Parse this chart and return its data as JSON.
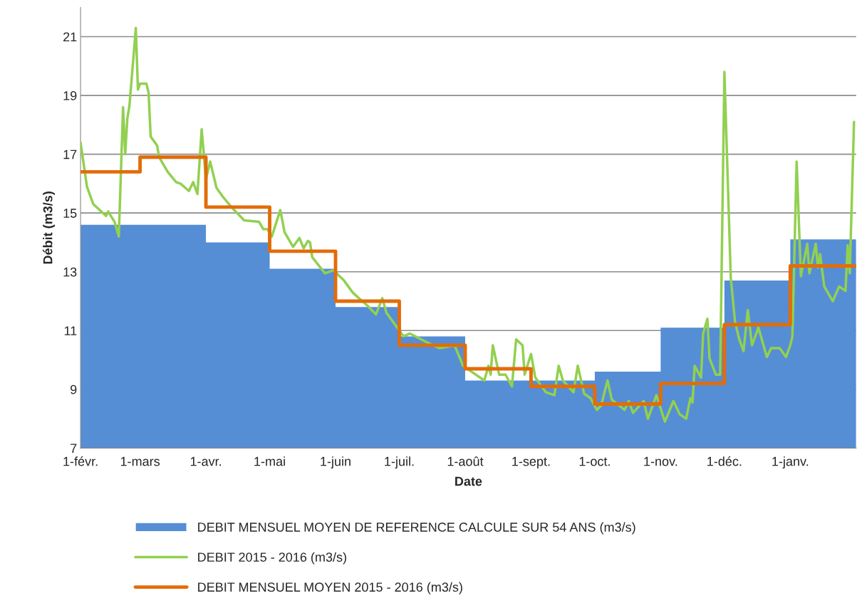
{
  "chart_data": {
    "type": "line",
    "xlabel": "Date",
    "ylabel": "Débit (m3/s)",
    "xlim": [
      "2015-02-01",
      "2016-02-01"
    ],
    "ylim": [
      7,
      22
    ],
    "xticks": [
      {
        "value": "2015-02-01",
        "label": "1-févr."
      },
      {
        "value": "2015-03-01",
        "label": "1-mars"
      },
      {
        "value": "2015-04-01",
        "label": "1-avr."
      },
      {
        "value": "2015-05-01",
        "label": "1-mai"
      },
      {
        "value": "2015-06-01",
        "label": "1-juin"
      },
      {
        "value": "2015-07-01",
        "label": "1-juil."
      },
      {
        "value": "2015-08-01",
        "label": "1-août"
      },
      {
        "value": "2015-09-01",
        "label": "1-sept."
      },
      {
        "value": "2015-10-01",
        "label": "1-oct."
      },
      {
        "value": "2015-11-01",
        "label": "1-nov."
      },
      {
        "value": "2015-12-01",
        "label": "1-déc."
      },
      {
        "value": "2016-01-01",
        "label": "1-janv."
      }
    ],
    "yticks": [
      7,
      9,
      11,
      13,
      15,
      17,
      19,
      21
    ],
    "grid": "y",
    "legend": "bottom",
    "series": [
      {
        "type": "area",
        "name": "DEBIT MENSUEL MOYEN DE REFERENCE CALCULE SUR 54 ANS (m3/s)",
        "color": "#558ed5",
        "line_style": "steps",
        "x": [
          "2015-02-01",
          "2015-03-01",
          "2015-04-01",
          "2015-05-01",
          "2015-06-01",
          "2015-07-01",
          "2015-08-01",
          "2015-09-01",
          "2015-10-01",
          "2015-11-01",
          "2015-12-01",
          "2016-01-01",
          "2016-02-01"
        ],
        "values": [
          14.6,
          14.6,
          14.0,
          13.1,
          11.8,
          10.8,
          9.3,
          9.3,
          9.6,
          11.1,
          12.7,
          14.1,
          14.1
        ]
      },
      {
        "name": "DEBIT 2015 - 2016 (m3/s)",
        "color": "#92d050",
        "x": [
          "2015-02-01",
          "2015-02-04",
          "2015-02-07",
          "2015-02-10",
          "2015-02-13",
          "2015-02-14",
          "2015-02-17",
          "2015-02-19",
          "2015-02-21",
          "2015-02-22",
          "2015-02-23",
          "2015-02-24",
          "2015-02-26",
          "2015-02-27",
          "2015-02-28",
          "2015-03-01",
          "2015-03-04",
          "2015-03-05",
          "2015-03-06",
          "2015-03-09",
          "2015-03-10",
          "2015-03-14",
          "2015-03-18",
          "2015-03-20",
          "2015-03-24",
          "2015-03-26",
          "2015-03-28",
          "2015-03-30",
          "2015-04-01",
          "2015-04-03",
          "2015-04-06",
          "2015-04-09",
          "2015-04-13",
          "2015-04-19",
          "2015-04-26",
          "2015-04-28",
          "2015-04-30",
          "2015-05-02",
          "2015-05-06",
          "2015-05-08",
          "2015-05-12",
          "2015-05-15",
          "2015-05-17",
          "2015-05-19",
          "2015-05-20",
          "2015-05-21",
          "2015-05-27",
          "2015-05-31",
          "2015-06-05",
          "2015-06-09",
          "2015-06-12",
          "2015-06-16",
          "2015-06-20",
          "2015-06-23",
          "2015-06-25",
          "2015-06-29",
          "2015-07-03",
          "2015-07-06",
          "2015-07-14",
          "2015-07-20",
          "2015-07-27",
          "2015-07-31",
          "2015-08-05",
          "2015-08-10",
          "2015-08-12",
          "2015-08-13",
          "2015-08-14",
          "2015-08-17",
          "2015-08-20",
          "2015-08-23",
          "2015-08-25",
          "2015-08-28",
          "2015-08-29",
          "2015-09-01",
          "2015-09-03",
          "2015-09-08",
          "2015-09-12",
          "2015-09-14",
          "2015-09-16",
          "2015-09-21",
          "2015-09-23",
          "2015-09-26",
          "2015-09-29",
          "2015-10-02",
          "2015-10-04",
          "2015-10-07",
          "2015-10-09",
          "2015-10-15",
          "2015-10-17",
          "2015-10-19",
          "2015-10-24",
          "2015-10-26",
          "2015-10-30",
          "2015-11-03",
          "2015-11-07",
          "2015-11-10",
          "2015-11-13",
          "2015-11-15",
          "2015-11-16",
          "2015-11-17",
          "2015-11-20",
          "2015-11-21",
          "2015-11-23",
          "2015-11-24",
          "2015-11-27",
          "2015-11-29",
          "2015-12-01",
          "2015-12-04",
          "2015-12-06",
          "2015-12-08",
          "2015-12-10",
          "2015-12-12",
          "2015-12-14",
          "2015-12-17",
          "2015-12-21",
          "2015-12-23",
          "2015-12-27",
          "2015-12-30",
          "2016-01-01",
          "2016-01-02",
          "2016-01-04",
          "2016-01-06",
          "2016-01-09",
          "2016-01-10",
          "2016-01-13",
          "2016-01-14",
          "2016-01-15",
          "2016-01-17",
          "2016-01-21",
          "2016-01-24",
          "2016-01-27",
          "2016-01-28",
          "2016-01-29",
          "2016-01-31"
        ],
        "values": [
          17.4,
          15.9,
          15.3,
          15.1,
          14.9,
          15.05,
          14.7,
          14.2,
          18.6,
          17.0,
          18.2,
          18.65,
          20.4,
          21.3,
          19.2,
          19.4,
          19.4,
          19.1,
          17.6,
          17.3,
          16.9,
          16.4,
          16.05,
          16.0,
          15.75,
          16.05,
          15.65,
          17.85,
          16.15,
          16.75,
          15.85,
          15.55,
          15.2,
          14.75,
          14.7,
          14.45,
          14.45,
          14.2,
          15.1,
          14.35,
          13.85,
          14.15,
          13.8,
          14.05,
          14.0,
          13.5,
          12.95,
          13.05,
          12.7,
          12.3,
          12.1,
          11.85,
          11.55,
          12.1,
          11.6,
          11.2,
          10.8,
          10.9,
          10.6,
          10.4,
          10.5,
          9.8,
          9.55,
          9.3,
          9.8,
          9.5,
          10.5,
          9.5,
          9.5,
          9.1,
          10.7,
          10.5,
          9.5,
          10.2,
          9.4,
          8.9,
          8.8,
          9.8,
          9.3,
          8.9,
          9.8,
          8.85,
          8.7,
          8.3,
          8.45,
          9.3,
          8.65,
          8.3,
          8.6,
          8.2,
          8.6,
          8.0,
          8.8,
          7.9,
          8.6,
          8.15,
          8.0,
          8.7,
          8.55,
          9.8,
          9.4,
          10.9,
          11.4,
          10.05,
          9.5,
          9.5,
          19.8,
          12.8,
          11.3,
          10.7,
          10.3,
          11.7,
          10.5,
          11.1,
          10.1,
          10.4,
          10.4,
          10.1,
          10.5,
          10.8,
          16.75,
          12.85,
          13.95,
          12.95,
          13.95,
          13.15,
          13.6,
          12.5,
          12.0,
          12.5,
          12.35,
          13.9,
          12.95,
          18.1
        ]
      },
      {
        "type": "step",
        "name": "DEBIT MENSUEL MOYEN 2015 - 2016 (m3/s)",
        "color": "#e36c09",
        "x": [
          "2015-02-01",
          "2015-03-01",
          "2015-04-01",
          "2015-05-01",
          "2015-06-01",
          "2015-07-01",
          "2015-08-01",
          "2015-09-01",
          "2015-10-01",
          "2015-11-01",
          "2015-12-01",
          "2016-01-01",
          "2016-02-01"
        ],
        "values": [
          16.4,
          16.9,
          15.2,
          13.7,
          12.0,
          10.5,
          9.7,
          9.1,
          8.5,
          9.2,
          11.2,
          13.2,
          13.2
        ]
      }
    ]
  }
}
